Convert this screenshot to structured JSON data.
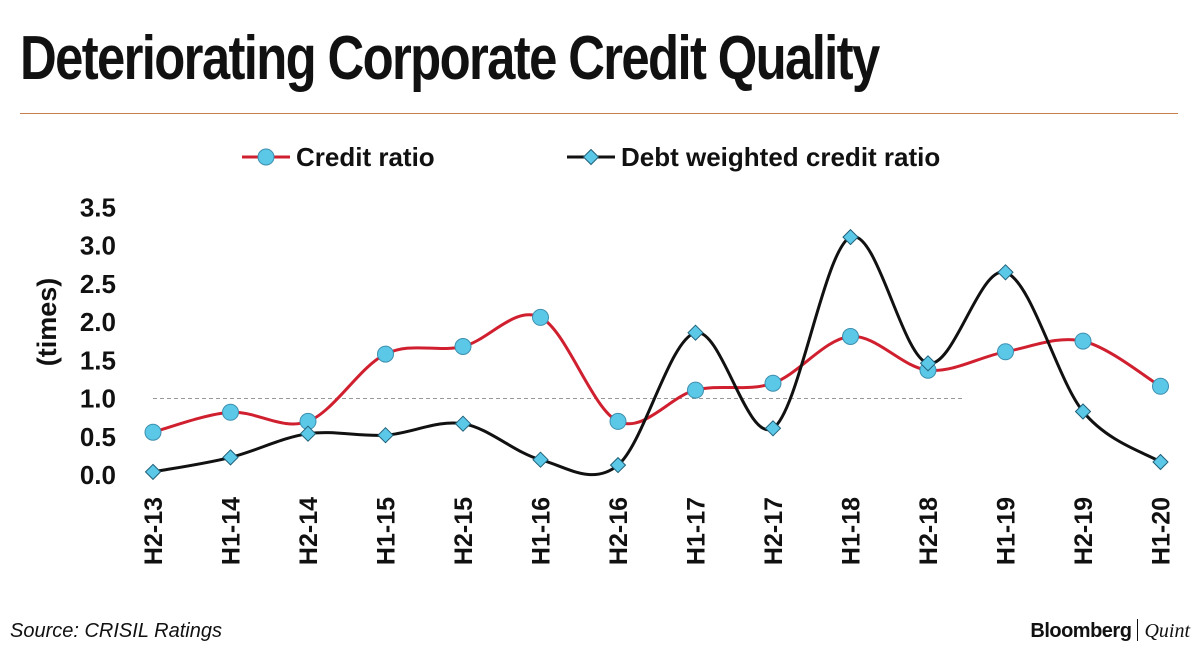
{
  "header": {
    "title": "Deteriorating Corporate Credit Quality"
  },
  "footer": {
    "source": "Source: CRISIL Ratings",
    "brand_main": "Bloomberg",
    "brand_sub": "Quint"
  },
  "chart_data": {
    "type": "line",
    "title": "Deteriorating Corporate Credit Quality",
    "ylabel": "(times)",
    "ylim": [
      0,
      3.5
    ],
    "yticks": [
      "0.0",
      "0.5",
      "1.0",
      "1.5",
      "2.0",
      "2.5",
      "3.0",
      "3.5"
    ],
    "reference_line": 1.0,
    "grid": false,
    "legend_position": "top",
    "categories": [
      "H2-13",
      "H1-14",
      "H2-14",
      "H1-15",
      "H2-15",
      "H1-16",
      "H2-16",
      "H1-17",
      "H2-17",
      "H1-18",
      "H2-18",
      "H1-19",
      "H2-19",
      "H1-20"
    ],
    "series": [
      {
        "name": "Credit ratio",
        "line_color": "#d0202f",
        "marker": "circle",
        "marker_color": "#5bc8e8",
        "values": [
          0.56,
          0.82,
          0.7,
          1.58,
          1.68,
          2.06,
          0.7,
          1.11,
          1.2,
          1.81,
          1.37,
          1.61,
          1.75,
          1.16
        ]
      },
      {
        "name": "Debt weighted credit ratio",
        "line_color": "#111111",
        "marker": "diamond",
        "marker_color": "#5bc8e8",
        "values": [
          0.04,
          0.23,
          0.54,
          0.52,
          0.67,
          0.2,
          0.13,
          1.86,
          0.61,
          3.11,
          1.46,
          2.65,
          0.83,
          0.17
        ]
      }
    ]
  }
}
